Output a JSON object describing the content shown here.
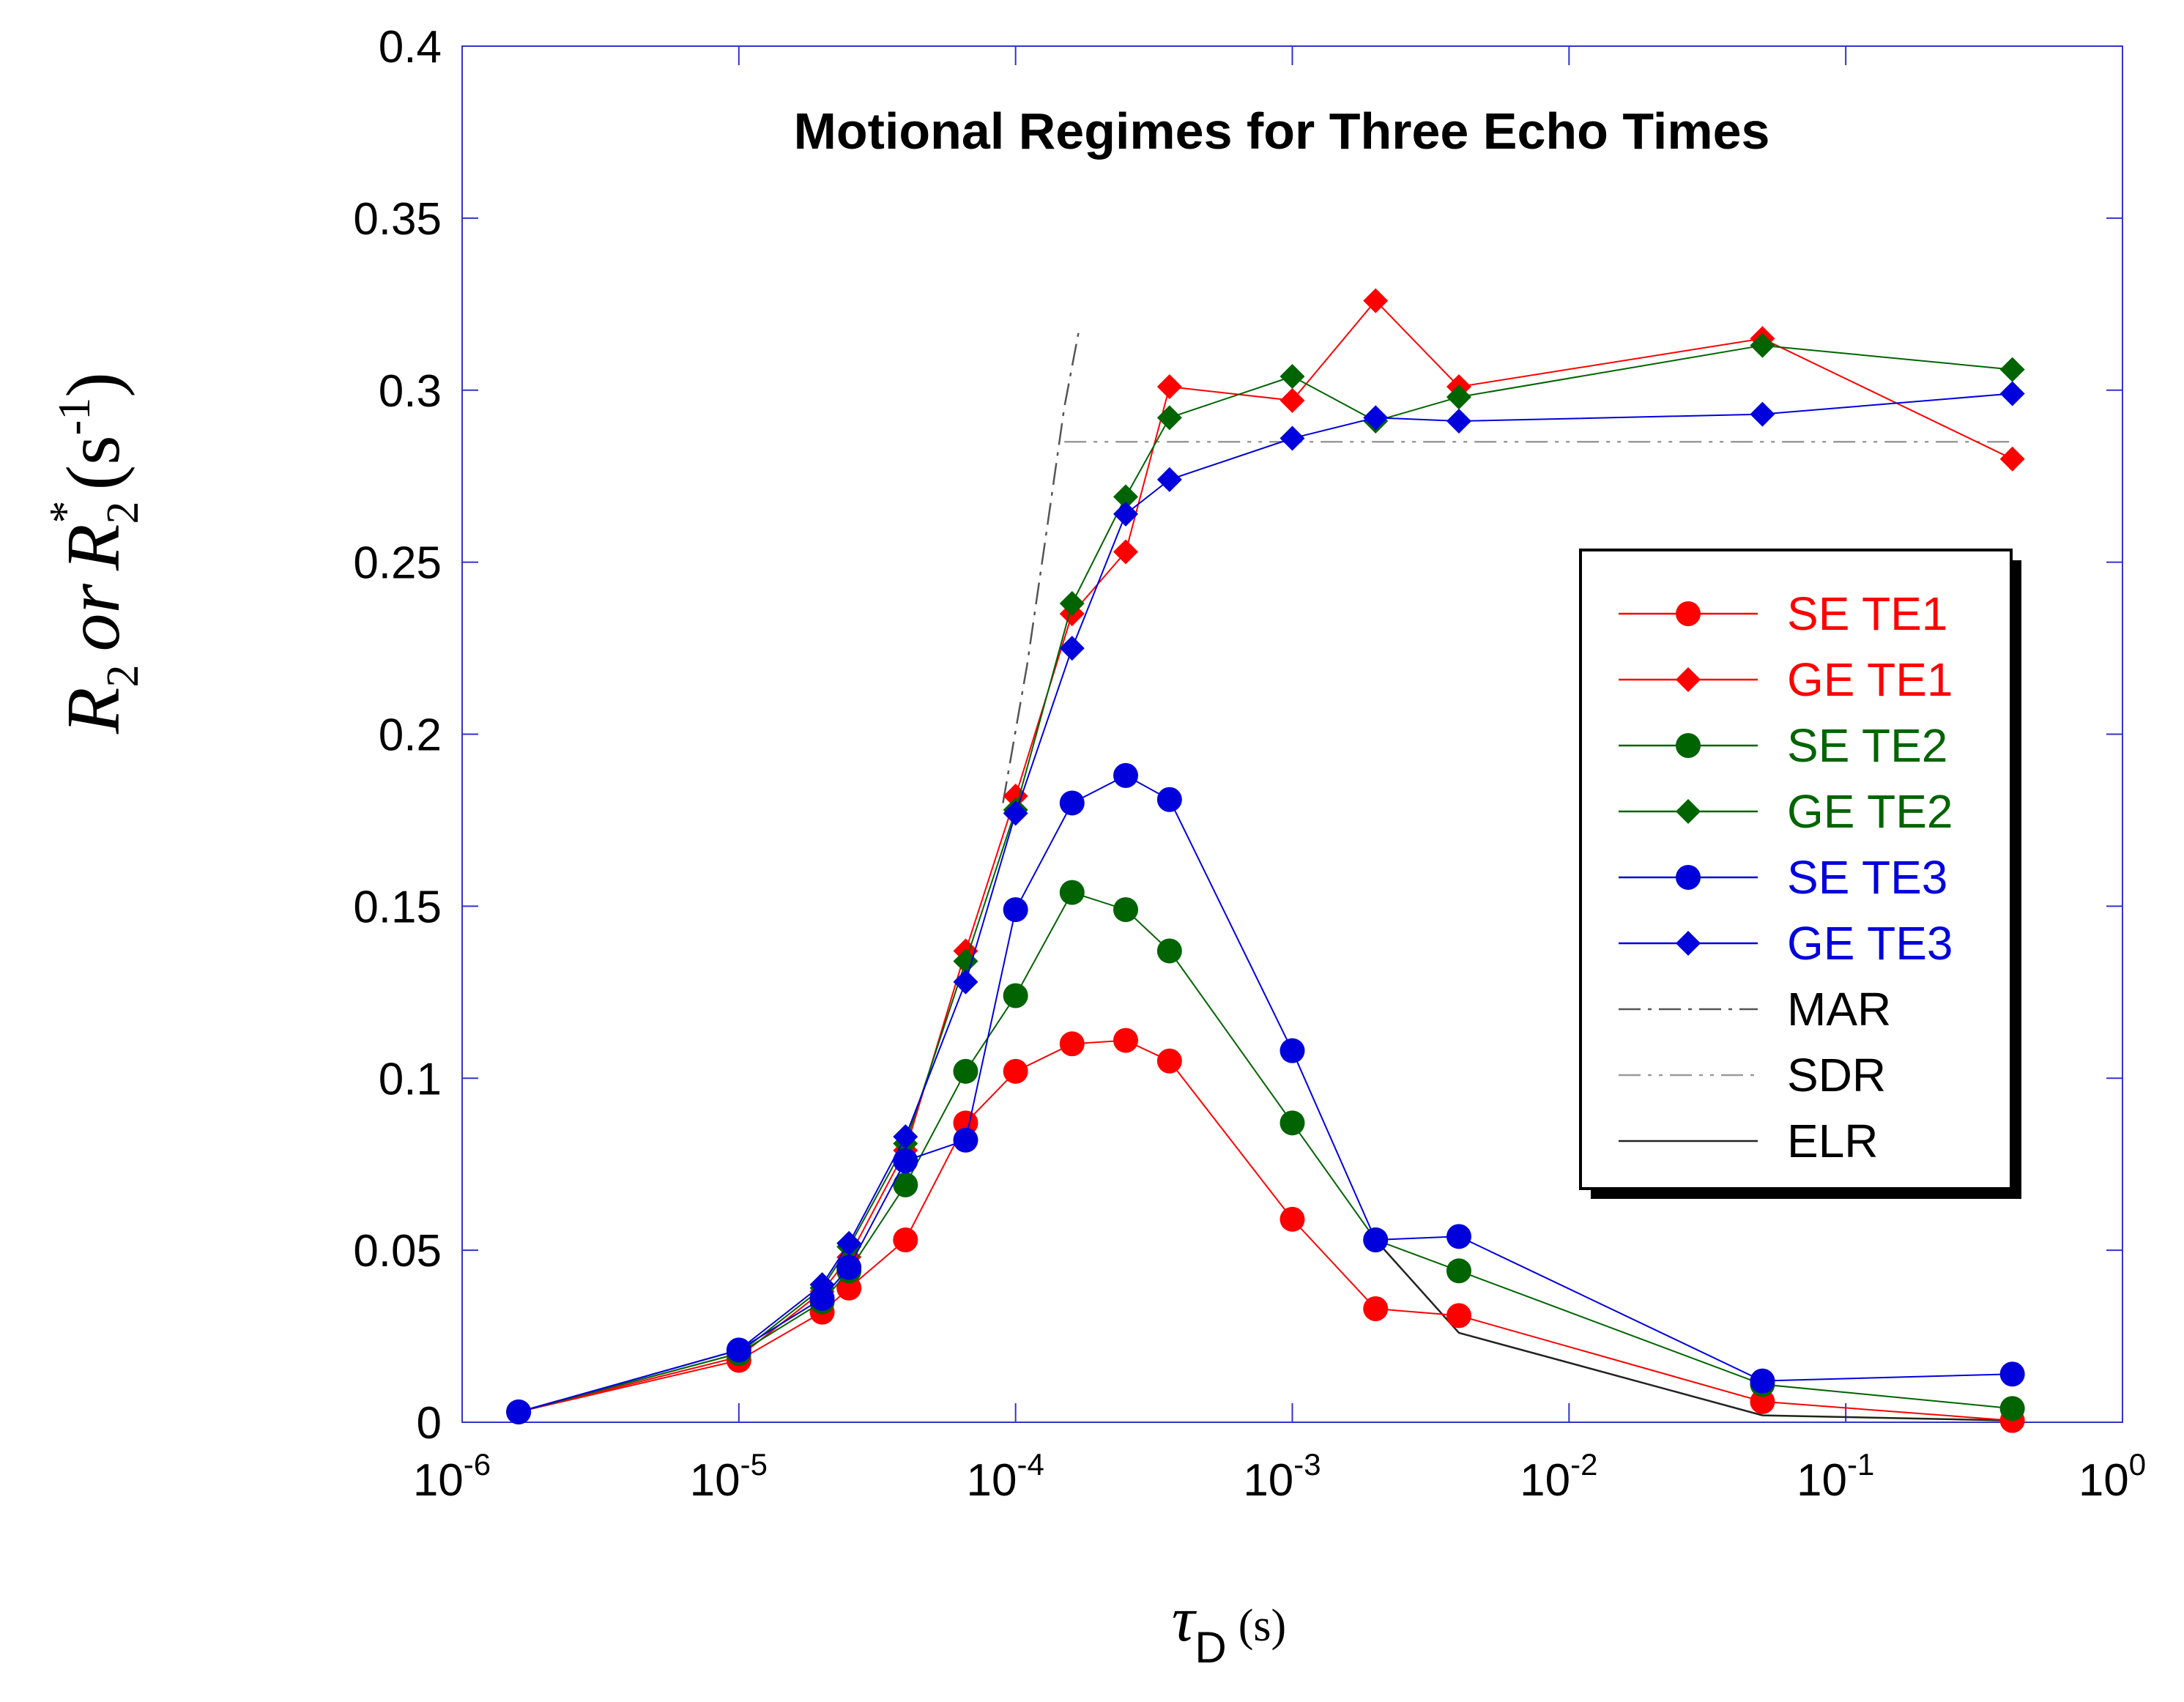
{
  "chart_data": {
    "type": "line",
    "title": "Motional Regimes for Three Echo Times",
    "xlabel": {
      "symbol": "τ",
      "sub": "D",
      "unit": "(s)"
    },
    "ylabel": {
      "r": "R",
      "sub1": "2",
      "or": "or",
      "r2": "R",
      "sub2": "2",
      "sup_star": "*",
      "unit_open": "(s",
      "unit_sup": "-1",
      "unit_close": ")"
    },
    "xscale": "log",
    "xlim": [
      1e-06,
      1
    ],
    "ylim": [
      0,
      0.4
    ],
    "xticks": [
      {
        "base": "10",
        "exp": "-6"
      },
      {
        "base": "10",
        "exp": "-5"
      },
      {
        "base": "10",
        "exp": "-4"
      },
      {
        "base": "10",
        "exp": "-3"
      },
      {
        "base": "10",
        "exp": "-2"
      },
      {
        "base": "10",
        "exp": "-1"
      },
      {
        "base": "10",
        "exp": "0"
      }
    ],
    "yticks": [
      "0",
      "0.05",
      "0.1",
      "0.15",
      "0.2",
      "0.25",
      "0.3",
      "0.35",
      "0.4"
    ],
    "legend_position": "right",
    "series": [
      {
        "name": "SE TE1",
        "color": "#ff0000",
        "marker": "circle",
        "x": [
          1.6e-06,
          1e-05,
          2e-05,
          2.5e-05,
          4e-05,
          6.6e-05,
          0.0001,
          0.00016,
          0.00025,
          0.00036,
          0.001,
          0.002,
          0.004,
          0.05,
          0.4
        ],
        "y": [
          0.003,
          0.018,
          0.032,
          0.039,
          0.053,
          0.087,
          0.102,
          0.11,
          0.111,
          0.105,
          0.059,
          0.033,
          0.031,
          0.006,
          0.0005
        ]
      },
      {
        "name": "GE TE1",
        "color": "#ff0000",
        "marker": "diamond",
        "x": [
          1.6e-06,
          1e-05,
          2e-05,
          2.5e-05,
          4e-05,
          6.6e-05,
          0.0001,
          0.00016,
          0.00025,
          0.00036,
          0.001,
          0.002,
          0.004,
          0.05,
          0.4
        ],
        "y": [
          0.003,
          0.019,
          0.038,
          0.048,
          0.079,
          0.137,
          0.182,
          0.235,
          0.253,
          0.301,
          0.297,
          0.326,
          0.301,
          0.315,
          0.28
        ]
      },
      {
        "name": "SE TE2",
        "color": "#006400",
        "marker": "circle",
        "x": [
          1.6e-06,
          1e-05,
          2e-05,
          2.5e-05,
          4e-05,
          6.6e-05,
          0.0001,
          0.00016,
          0.00025,
          0.00036,
          0.001,
          0.002,
          0.004,
          0.05,
          0.4
        ],
        "y": [
          0.003,
          0.02,
          0.035,
          0.044,
          0.069,
          0.102,
          0.124,
          0.154,
          0.149,
          0.137,
          0.087,
          0.053,
          0.044,
          0.011,
          0.004
        ]
      },
      {
        "name": "GE TE2",
        "color": "#006400",
        "marker": "diamond",
        "x": [
          1.6e-06,
          1e-05,
          2e-05,
          2.5e-05,
          4e-05,
          6.6e-05,
          0.0001,
          0.00016,
          0.00025,
          0.00036,
          0.001,
          0.002,
          0.004,
          0.05,
          0.4
        ],
        "y": [
          0.003,
          0.02,
          0.039,
          0.051,
          0.081,
          0.134,
          0.178,
          0.238,
          0.269,
          0.292,
          0.304,
          0.291,
          0.298,
          0.313,
          0.306
        ]
      },
      {
        "name": "SE TE3",
        "color": "#0000dd",
        "marker": "circle",
        "x": [
          1.6e-06,
          1e-05,
          2e-05,
          2.5e-05,
          4e-05,
          6.6e-05,
          0.0001,
          0.00016,
          0.00025,
          0.00036,
          0.001,
          0.002,
          0.004,
          0.05,
          0.4
        ],
        "y": [
          0.003,
          0.021,
          0.036,
          0.045,
          0.076,
          0.082,
          0.149,
          0.18,
          0.188,
          0.181,
          0.108,
          0.053,
          0.054,
          0.012,
          0.014
        ]
      },
      {
        "name": "GE TE3",
        "color": "#0000dd",
        "marker": "diamond",
        "x": [
          1.6e-06,
          1e-05,
          2e-05,
          2.5e-05,
          4e-05,
          6.6e-05,
          0.0001,
          0.00016,
          0.00025,
          0.00036,
          0.001,
          0.002,
          0.004,
          0.05,
          0.4
        ],
        "y": [
          0.003,
          0.021,
          0.04,
          0.052,
          0.083,
          0.128,
          0.177,
          0.225,
          0.264,
          0.274,
          0.286,
          0.292,
          0.291,
          0.293,
          0.299
        ]
      }
    ],
    "reference_lines": [
      {
        "name": "MAR",
        "color": "#555555",
        "style": "dash-dot",
        "x": [
          9e-05,
          0.00011,
          0.00013,
          0.00015,
          0.00017
        ],
        "y": [
          0.18,
          0.22,
          0.26,
          0.295,
          0.318
        ]
      },
      {
        "name": "SDR",
        "color": "#999999",
        "style": "dash-dot-dot",
        "x": [
          0.00015,
          0.4
        ],
        "y": [
          0.285,
          0.285
        ]
      },
      {
        "name": "ELR",
        "color": "#222222",
        "style": "solid",
        "x": [
          0.002,
          0.004,
          0.05,
          0.4
        ],
        "y": [
          0.053,
          0.026,
          0.002,
          0.0005
        ]
      }
    ]
  }
}
